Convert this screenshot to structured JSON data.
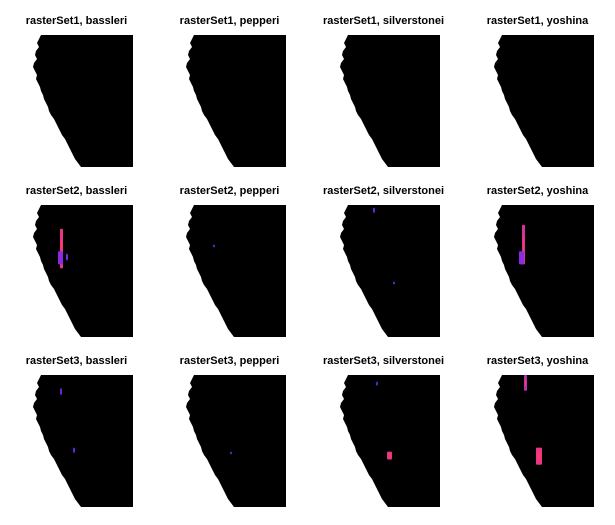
{
  "colors": {
    "background": "#ffffff",
    "landmask": "#000000",
    "ocean": "#ffffff",
    "hotspot_low": "#2a1fd6",
    "hotspot_mid": "#8a2be2",
    "hotspot_high": "#ff3a6a"
  },
  "chart_data": {
    "type": "heatmap",
    "layout": "grid",
    "rows": 3,
    "cols": 4,
    "panels": [
      {
        "title": "rasterSet1, bassleri",
        "hotspots": []
      },
      {
        "title": "rasterSet1, pepperi",
        "hotspots": []
      },
      {
        "title": "rasterSet1, silverstonei",
        "hotspots": []
      },
      {
        "title": "rasterSet1, yoshina",
        "hotspots": []
      },
      {
        "title": "rasterSet2, bassleri",
        "hotspots": [
          {
            "x": 0.27,
            "y": 0.18,
            "w": 0.03,
            "h": 0.3,
            "intensity": 0.9
          },
          {
            "x": 0.25,
            "y": 0.35,
            "w": 0.05,
            "h": 0.1,
            "intensity": 0.5
          },
          {
            "x": 0.33,
            "y": 0.37,
            "w": 0.02,
            "h": 0.05,
            "intensity": 0.4
          }
        ]
      },
      {
        "title": "rasterSet2, pepperi",
        "hotspots": [
          {
            "x": 0.27,
            "y": 0.3,
            "w": 0.02,
            "h": 0.02,
            "intensity": 0.3
          }
        ]
      },
      {
        "title": "rasterSet2, silverstonei",
        "hotspots": [
          {
            "x": 0.33,
            "y": 0.02,
            "w": 0.02,
            "h": 0.04,
            "intensity": 0.3
          },
          {
            "x": 0.53,
            "y": 0.58,
            "w": 0.02,
            "h": 0.02,
            "intensity": 0.3
          }
        ]
      },
      {
        "title": "rasterSet2, yoshina",
        "hotspots": [
          {
            "x": 0.28,
            "y": 0.15,
            "w": 0.03,
            "h": 0.3,
            "intensity": 0.8
          },
          {
            "x": 0.25,
            "y": 0.35,
            "w": 0.05,
            "h": 0.1,
            "intensity": 0.5
          }
        ]
      },
      {
        "title": "rasterSet3, bassleri",
        "hotspots": [
          {
            "x": 0.27,
            "y": 0.1,
            "w": 0.02,
            "h": 0.05,
            "intensity": 0.3
          },
          {
            "x": 0.4,
            "y": 0.55,
            "w": 0.02,
            "h": 0.04,
            "intensity": 0.3
          }
        ]
      },
      {
        "title": "rasterSet3, pepperi",
        "hotspots": [
          {
            "x": 0.44,
            "y": 0.58,
            "w": 0.02,
            "h": 0.02,
            "intensity": 0.25
          }
        ]
      },
      {
        "title": "rasterSet3, silverstonei",
        "hotspots": [
          {
            "x": 0.47,
            "y": 0.58,
            "w": 0.05,
            "h": 0.06,
            "intensity": 0.9
          },
          {
            "x": 0.36,
            "y": 0.05,
            "w": 0.02,
            "h": 0.03,
            "intensity": 0.2
          }
        ]
      },
      {
        "title": "rasterSet3, yoshina",
        "hotspots": [
          {
            "x": 0.3,
            "y": 0.0,
            "w": 0.03,
            "h": 0.12,
            "intensity": 0.7
          },
          {
            "x": 0.42,
            "y": 0.55,
            "w": 0.06,
            "h": 0.13,
            "intensity": 0.9
          }
        ]
      }
    ]
  }
}
